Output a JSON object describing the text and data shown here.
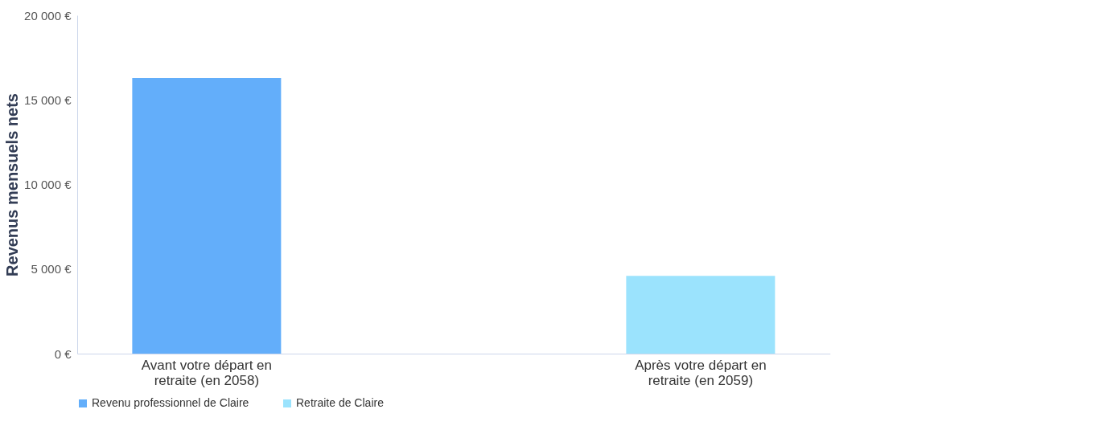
{
  "chart_data": {
    "type": "bar",
    "ylabel": "Revenus mensuels nets",
    "categories": [
      "Avant votre départ en retraite (en 2058)",
      "Après votre départ en retraite (en 2059)"
    ],
    "series": [
      {
        "name": "Revenu professionnel de Claire",
        "color": "#63aefa",
        "values": [
          16300,
          null
        ]
      },
      {
        "name": "Retraite de Claire",
        "color": "#9be3fd",
        "values": [
          null,
          4600
        ]
      }
    ],
    "ylim": [
      0,
      20000
    ],
    "yticks": [
      {
        "value": 0,
        "label": "0 €"
      },
      {
        "value": 5000,
        "label": "5 000 €"
      },
      {
        "value": 10000,
        "label": "10 000 €"
      },
      {
        "value": 15000,
        "label": "15 000 €"
      },
      {
        "value": 20000,
        "label": "20 000 €"
      }
    ],
    "grid": false,
    "legend": "bottom"
  }
}
